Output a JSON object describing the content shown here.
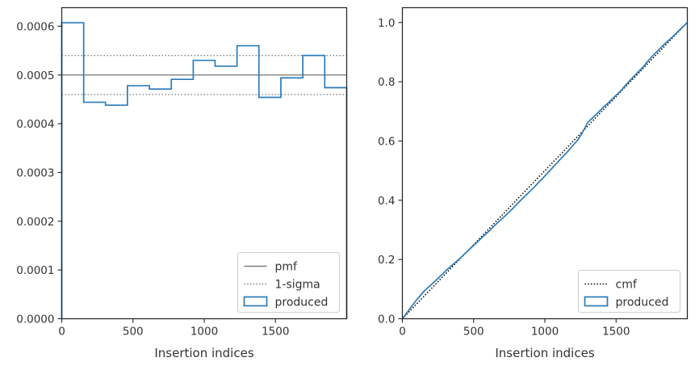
{
  "chart_data": [
    {
      "type": "line",
      "xlabel": "Insertion indices",
      "ylabel": "",
      "xlim": [
        0,
        2000
      ],
      "ylim": [
        0,
        0.000638
      ],
      "xticks": [
        0,
        500,
        1000,
        1500
      ],
      "xtick_labels": [
        "0",
        "500",
        "1000",
        "1500"
      ],
      "yticks": [
        0,
        0.0001,
        0.0002,
        0.0003,
        0.0004,
        0.0005,
        0.0006
      ],
      "ytick_labels": [
        "0.0000",
        "0.0001",
        "0.0002",
        "0.0003",
        "0.0004",
        "0.0005",
        "0.0006"
      ],
      "grid": false,
      "legend_position": "lower-right",
      "reference_lines": [
        {
          "name": "pmf",
          "y": 0.0005,
          "style": "solid",
          "color": "#808080"
        },
        {
          "name": "1-sigma",
          "y": 0.00054,
          "style": "dotted",
          "color": "#808080"
        },
        {
          "name": "1-sigma",
          "y": 0.00046,
          "style": "dotted",
          "color": "#808080"
        }
      ],
      "series": [
        {
          "name": "produced",
          "style": "step",
          "color": "#2b7bba",
          "bin_edges": [
            0,
            154,
            307,
            461,
            615,
            769,
            923,
            1076,
            1230,
            1384,
            1538,
            1692,
            1846,
            2000
          ],
          "values": [
            0.000607,
            0.000444,
            0.000438,
            0.000478,
            0.000471,
            0.000491,
            0.00053,
            0.000518,
            0.00056,
            0.000454,
            0.000494,
            0.00054,
            0.000474
          ]
        }
      ],
      "legend": [
        {
          "label": "pmf",
          "kind": "line-solid",
          "color": "#808080"
        },
        {
          "label": "1-sigma",
          "kind": "line-dotted",
          "color": "#808080"
        },
        {
          "label": "produced",
          "kind": "patch",
          "color": "#2b7bba"
        }
      ]
    },
    {
      "type": "line",
      "xlabel": "Insertion indices",
      "ylabel": "",
      "xlim": [
        0,
        2000
      ],
      "ylim": [
        0,
        1.05
      ],
      "xticks": [
        0,
        500,
        1000,
        1500
      ],
      "xtick_labels": [
        "0",
        "500",
        "1000",
        "1500"
      ],
      "yticks": [
        0,
        0.2,
        0.4,
        0.6,
        0.8,
        1.0
      ],
      "ytick_labels": [
        "0.0",
        "0.2",
        "0.4",
        "0.6",
        "0.8",
        "1.0"
      ],
      "grid": false,
      "legend_position": "lower-right",
      "series": [
        {
          "name": "cmf",
          "style": "dotted",
          "color": "#000000",
          "x": [
            0,
            2000
          ],
          "y": [
            0,
            1.0
          ]
        },
        {
          "name": "produced",
          "style": "solid",
          "color": "#2b7bba",
          "x": [
            0,
            50,
            100,
            154,
            200,
            250,
            307,
            350,
            400,
            461,
            500,
            550,
            615,
            650,
            700,
            769,
            800,
            850,
            923,
            950,
            1000,
            1076,
            1100,
            1150,
            1230,
            1260,
            1300,
            1384,
            1400,
            1450,
            1538,
            1560,
            1600,
            1692,
            1720,
            1760,
            1846,
            1900,
            1950,
            2000
          ],
          "y": [
            0,
            0.032,
            0.064,
            0.094,
            0.114,
            0.136,
            0.163,
            0.181,
            0.202,
            0.23,
            0.247,
            0.27,
            0.299,
            0.316,
            0.338,
            0.369,
            0.385,
            0.409,
            0.443,
            0.457,
            0.482,
            0.521,
            0.534,
            0.559,
            0.603,
            0.625,
            0.662,
            0.701,
            0.709,
            0.731,
            0.772,
            0.785,
            0.806,
            0.851,
            0.868,
            0.889,
            0.93,
            0.953,
            0.977,
            1.0
          ]
        }
      ],
      "legend": [
        {
          "label": "cmf",
          "kind": "line-dotted",
          "color": "#000000"
        },
        {
          "label": "produced",
          "kind": "patch",
          "color": "#2b7bba"
        }
      ]
    }
  ]
}
